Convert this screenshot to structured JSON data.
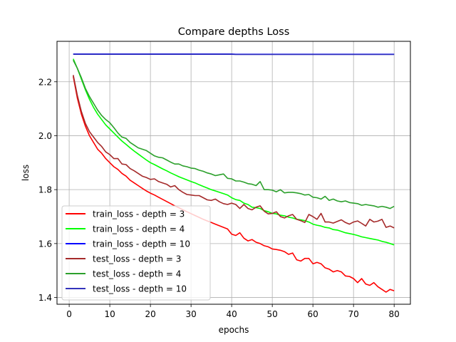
{
  "chart_data": {
    "type": "line",
    "title": "Compare depths Loss",
    "xlabel": "epochs",
    "ylabel": "loss",
    "xlim": [
      -3,
      84
    ],
    "ylim": [
      1.375,
      2.35
    ],
    "xticks": [
      0,
      10,
      20,
      30,
      40,
      50,
      60,
      70,
      80
    ],
    "xtick_labels": [
      "0",
      "10",
      "20",
      "30",
      "40",
      "50",
      "60",
      "70",
      "80"
    ],
    "yticks": [
      1.4,
      1.6,
      1.8,
      2.0,
      2.2
    ],
    "ytick_labels": [
      "1.4",
      "1.6",
      "1.8",
      "2.0",
      "2.2"
    ],
    "grid": true,
    "legend_position": "lower-left",
    "x": [
      1,
      2,
      3,
      4,
      5,
      6,
      7,
      8,
      9,
      10,
      11,
      12,
      13,
      14,
      15,
      16,
      17,
      18,
      19,
      20,
      21,
      22,
      23,
      24,
      25,
      26,
      27,
      28,
      29,
      30,
      31,
      32,
      33,
      34,
      35,
      36,
      37,
      38,
      39,
      40,
      41,
      42,
      43,
      44,
      45,
      46,
      47,
      48,
      49,
      50,
      51,
      52,
      53,
      54,
      55,
      56,
      57,
      58,
      59,
      60,
      61,
      62,
      63,
      64,
      65,
      66,
      67,
      68,
      69,
      70,
      71,
      72,
      73,
      74,
      75,
      76,
      77,
      78,
      79,
      80
    ],
    "series": [
      {
        "name": "train_loss - depth = 3",
        "color": "#ff0000",
        "values": [
          2.22,
          2.14,
          2.08,
          2.035,
          2.0,
          1.975,
          1.95,
          1.935,
          1.915,
          1.9,
          1.885,
          1.875,
          1.86,
          1.85,
          1.835,
          1.825,
          1.815,
          1.805,
          1.795,
          1.787,
          1.78,
          1.772,
          1.764,
          1.756,
          1.748,
          1.74,
          1.733,
          1.725,
          1.718,
          1.711,
          1.704,
          1.697,
          1.69,
          1.684,
          1.678,
          1.672,
          1.666,
          1.66,
          1.654,
          1.635,
          1.63,
          1.64,
          1.62,
          1.61,
          1.615,
          1.605,
          1.6,
          1.592,
          1.588,
          1.58,
          1.578,
          1.575,
          1.57,
          1.56,
          1.565,
          1.54,
          1.535,
          1.545,
          1.545,
          1.525,
          1.53,
          1.525,
          1.51,
          1.505,
          1.495,
          1.5,
          1.495,
          1.48,
          1.478,
          1.47,
          1.455,
          1.47,
          1.45,
          1.445,
          1.455,
          1.44,
          1.43,
          1.42,
          1.43,
          1.425
        ]
      },
      {
        "name": "train_loss - depth = 4",
        "color": "#00ff00",
        "values": [
          2.285,
          2.25,
          2.21,
          2.17,
          2.135,
          2.105,
          2.08,
          2.06,
          2.04,
          2.025,
          2.01,
          1.995,
          1.98,
          1.968,
          1.955,
          1.943,
          1.932,
          1.921,
          1.91,
          1.9,
          1.893,
          1.885,
          1.877,
          1.87,
          1.862,
          1.855,
          1.848,
          1.842,
          1.836,
          1.83,
          1.825,
          1.818,
          1.812,
          1.806,
          1.8,
          1.795,
          1.79,
          1.785,
          1.78,
          1.77,
          1.763,
          1.76,
          1.75,
          1.745,
          1.735,
          1.733,
          1.73,
          1.722,
          1.718,
          1.712,
          1.71,
          1.705,
          1.703,
          1.698,
          1.695,
          1.69,
          1.688,
          1.685,
          1.68,
          1.672,
          1.668,
          1.665,
          1.66,
          1.658,
          1.652,
          1.65,
          1.645,
          1.64,
          1.637,
          1.634,
          1.63,
          1.625,
          1.622,
          1.619,
          1.616,
          1.613,
          1.608,
          1.605,
          1.6,
          1.595
        ]
      },
      {
        "name": "train_loss - depth = 10",
        "color": "#0000ff",
        "values": [
          2.303,
          2.303,
          2.303,
          2.303,
          2.303,
          2.303,
          2.303,
          2.303,
          2.303,
          2.303,
          2.303,
          2.303,
          2.303,
          2.303,
          2.303,
          2.303,
          2.303,
          2.303,
          2.303,
          2.303,
          2.303,
          2.303,
          2.303,
          2.303,
          2.303,
          2.303,
          2.303,
          2.303,
          2.303,
          2.303,
          2.303,
          2.303,
          2.303,
          2.303,
          2.303,
          2.303,
          2.303,
          2.303,
          2.303,
          2.303,
          2.302,
          2.302,
          2.302,
          2.302,
          2.302,
          2.302,
          2.302,
          2.302,
          2.302,
          2.302,
          2.302,
          2.302,
          2.302,
          2.302,
          2.302,
          2.302,
          2.302,
          2.302,
          2.302,
          2.302,
          2.302,
          2.302,
          2.302,
          2.302,
          2.302,
          2.302,
          2.302,
          2.302,
          2.302,
          2.302,
          2.302,
          2.302,
          2.302,
          2.302,
          2.302,
          2.302,
          2.302,
          2.302,
          2.302,
          2.302
        ]
      },
      {
        "name": "test_loss - depth = 3",
        "color": "#a52a2a",
        "values": [
          2.225,
          2.15,
          2.09,
          2.045,
          2.015,
          1.995,
          1.975,
          1.96,
          1.94,
          1.93,
          1.915,
          1.915,
          1.895,
          1.893,
          1.878,
          1.87,
          1.86,
          1.85,
          1.845,
          1.838,
          1.84,
          1.83,
          1.825,
          1.82,
          1.81,
          1.815,
          1.8,
          1.79,
          1.782,
          1.78,
          1.778,
          1.778,
          1.77,
          1.762,
          1.76,
          1.765,
          1.755,
          1.748,
          1.745,
          1.75,
          1.745,
          1.73,
          1.745,
          1.73,
          1.725,
          1.735,
          1.74,
          1.72,
          1.71,
          1.712,
          1.718,
          1.7,
          1.695,
          1.703,
          1.708,
          1.69,
          1.685,
          1.678,
          1.708,
          1.7,
          1.69,
          1.712,
          1.68,
          1.68,
          1.676,
          1.682,
          1.688,
          1.678,
          1.672,
          1.68,
          1.684,
          1.675,
          1.665,
          1.69,
          1.68,
          1.683,
          1.69,
          1.66,
          1.665,
          1.658
        ]
      },
      {
        "name": "test_loss - depth = 4",
        "color": "#2ca02c",
        "values": [
          2.28,
          2.25,
          2.215,
          2.175,
          2.145,
          2.12,
          2.095,
          2.075,
          2.06,
          2.048,
          2.03,
          2.01,
          1.995,
          1.99,
          1.975,
          1.965,
          1.955,
          1.95,
          1.945,
          1.935,
          1.925,
          1.92,
          1.918,
          1.91,
          1.902,
          1.895,
          1.895,
          1.888,
          1.885,
          1.88,
          1.878,
          1.872,
          1.868,
          1.862,
          1.858,
          1.852,
          1.855,
          1.858,
          1.842,
          1.84,
          1.832,
          1.832,
          1.828,
          1.822,
          1.82,
          1.815,
          1.83,
          1.8,
          1.8,
          1.798,
          1.792,
          1.8,
          1.788,
          1.79,
          1.79,
          1.788,
          1.785,
          1.78,
          1.782,
          1.772,
          1.77,
          1.765,
          1.775,
          1.76,
          1.765,
          1.758,
          1.755,
          1.758,
          1.752,
          1.75,
          1.748,
          1.742,
          1.745,
          1.742,
          1.74,
          1.735,
          1.738,
          1.735,
          1.73,
          1.738
        ]
      },
      {
        "name": "test_loss - depth = 10",
        "color": "#3333bb",
        "values": [
          2.302,
          2.302,
          2.302,
          2.302,
          2.302,
          2.302,
          2.302,
          2.302,
          2.302,
          2.302,
          2.302,
          2.302,
          2.302,
          2.302,
          2.302,
          2.302,
          2.302,
          2.302,
          2.302,
          2.302,
          2.302,
          2.302,
          2.302,
          2.302,
          2.302,
          2.302,
          2.302,
          2.302,
          2.302,
          2.302,
          2.302,
          2.302,
          2.302,
          2.302,
          2.302,
          2.302,
          2.302,
          2.302,
          2.302,
          2.302,
          2.301,
          2.301,
          2.301,
          2.301,
          2.301,
          2.301,
          2.301,
          2.301,
          2.301,
          2.301,
          2.301,
          2.301,
          2.301,
          2.301,
          2.301,
          2.301,
          2.301,
          2.301,
          2.301,
          2.301,
          2.301,
          2.301,
          2.301,
          2.301,
          2.301,
          2.301,
          2.301,
          2.301,
          2.301,
          2.301,
          2.301,
          2.301,
          2.301,
          2.301,
          2.301,
          2.301,
          2.301,
          2.301,
          2.301,
          2.301
        ]
      }
    ]
  }
}
